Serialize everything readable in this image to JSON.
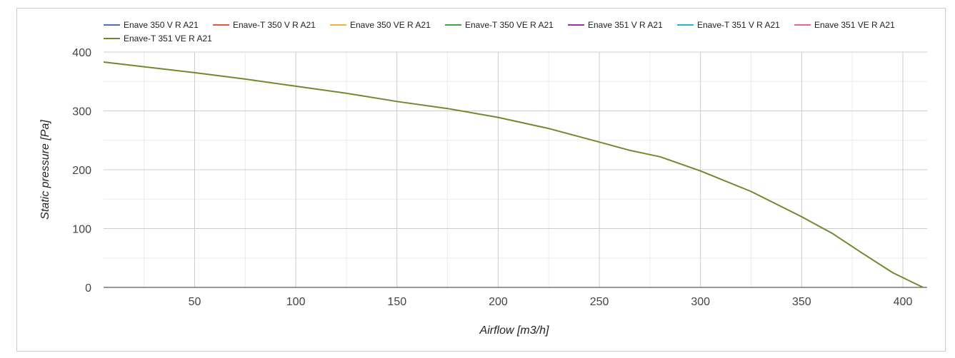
{
  "chart_data": {
    "type": "line",
    "xlabel": "Airflow [m3/h]",
    "ylabel": "Static pressure [Pa]",
    "xlim": [
      5,
      412
    ],
    "ylim": [
      0,
      400
    ],
    "x_ticks": [
      50,
      100,
      150,
      200,
      250,
      300,
      350,
      400
    ],
    "y_ticks": [
      0,
      100,
      200,
      300,
      400
    ],
    "grid": true,
    "legend_position": "top",
    "series": [
      {
        "name": "Enave 350 V R A21",
        "color": "#4472c4",
        "x": [],
        "y": []
      },
      {
        "name": "Enave-T 350 V R A21",
        "color": "#e8563a",
        "x": [],
        "y": []
      },
      {
        "name": "Enave 350 VE R A21",
        "color": "#f6b042",
        "x": [],
        "y": []
      },
      {
        "name": "Enave-T 350 VE R A21",
        "color": "#3aa745",
        "x": [],
        "y": []
      },
      {
        "name": "Enave 351 V R A21",
        "color": "#a030a8",
        "x": [],
        "y": []
      },
      {
        "name": "Enave-T 351 V R A21",
        "color": "#2ab0d2",
        "x": [],
        "y": []
      },
      {
        "name": "Enave 351 VE R A21",
        "color": "#e8649a",
        "x": [],
        "y": []
      },
      {
        "name": "Enave-T 351 VE R A21",
        "color": "#6f8a2e",
        "x": [
          5,
          25,
          50,
          75,
          100,
          125,
          150,
          175,
          200,
          225,
          250,
          265,
          280,
          300,
          325,
          350,
          365,
          380,
          395,
          410
        ],
        "y": [
          383,
          375,
          365,
          354,
          342,
          330,
          316,
          304,
          289,
          270,
          247,
          233,
          222,
          198,
          163,
          120,
          92,
          58,
          25,
          0
        ]
      }
    ]
  }
}
